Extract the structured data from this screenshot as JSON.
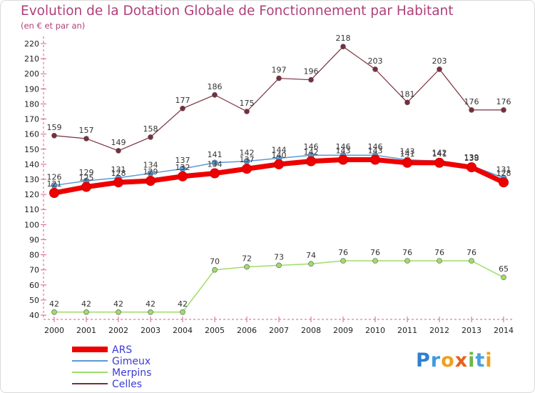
{
  "chart_data": {
    "type": "line",
    "title": "Evolution de la Dotation Globale de Fonctionnement par Habitant",
    "subtitle": "(en € et par an)",
    "xlabel": "",
    "ylabel": "",
    "x": [
      "2000",
      "2001",
      "2002",
      "2003",
      "2004",
      "2005",
      "2006",
      "2007",
      "2008",
      "2009",
      "2010",
      "2011",
      "2012",
      "2013",
      "2014"
    ],
    "ylim": [
      40,
      220
    ],
    "yticks": [
      40,
      50,
      60,
      70,
      80,
      90,
      100,
      110,
      120,
      130,
      140,
      150,
      160,
      170,
      180,
      190,
      200,
      210,
      220
    ],
    "grid": false,
    "legend_position": "bottom-left",
    "series": [
      {
        "name": "ARS",
        "color": "#ee0000",
        "values": [
          121,
          125,
          128,
          129,
          132,
          134,
          137,
          140,
          142,
          143,
          143,
          141,
          141,
          138,
          128
        ]
      },
      {
        "name": "Gimeux",
        "color": "#5b9bd5",
        "values": [
          126,
          129,
          131,
          134,
          137,
          141,
          142,
          144,
          146,
          146,
          146,
          143,
          142,
          139,
          131
        ]
      },
      {
        "name": "Merpins",
        "color": "#9fdc6a",
        "values": [
          42,
          42,
          42,
          42,
          42,
          70,
          72,
          73,
          74,
          76,
          76,
          76,
          76,
          76,
          65
        ]
      },
      {
        "name": "Celles",
        "color": "#7a2e3c",
        "values": [
          159,
          157,
          149,
          158,
          177,
          186,
          175,
          197,
          196,
          218,
          203,
          181,
          203,
          176,
          176
        ]
      }
    ]
  },
  "logo": {
    "letters": [
      {
        "ch": "P",
        "color": "#2f7fd0"
      },
      {
        "ch": "r",
        "color": "#3d9ae0"
      },
      {
        "ch": "o",
        "color": "#f0a020"
      },
      {
        "ch": "x",
        "color": "#e8601c"
      },
      {
        "ch": "i",
        "color": "#6ab84a"
      },
      {
        "ch": "t",
        "color": "#4aa0e0"
      },
      {
        "ch": "i",
        "color": "#f0a020"
      }
    ]
  }
}
